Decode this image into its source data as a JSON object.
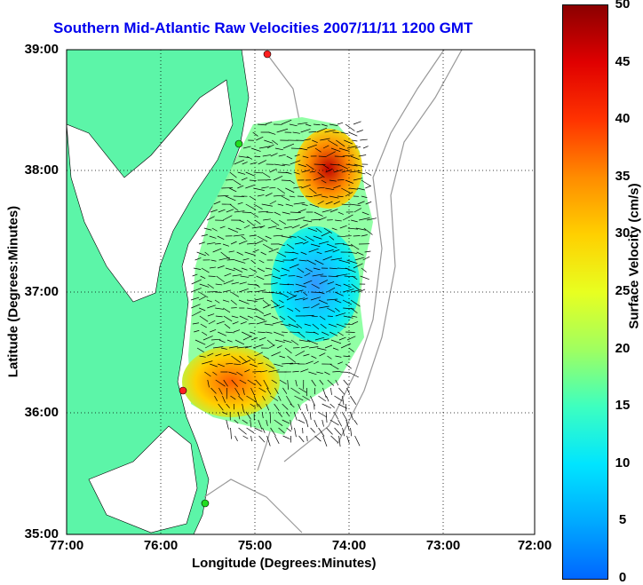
{
  "title": "Southern Mid-Atlantic Raw Velocities 2007/11/11 1200 GMT",
  "xlabel": "Longitude (Degrees:Minutes)",
  "ylabel": "Latitude (Degrees:Minutes)",
  "colorbar_label": "Surface Velocity (cm/s)",
  "x_ticks": [
    "77:00",
    "76:00",
    "75:00",
    "74:00",
    "73:00",
    "72:00"
  ],
  "y_ticks": [
    "39:00",
    "38:00",
    "37:00",
    "36:00",
    "35:00"
  ],
  "colorbar_ticks": [
    "50",
    "45",
    "40",
    "35",
    "30",
    "25",
    "20",
    "15",
    "10",
    "5",
    "0"
  ],
  "colors": {
    "land": "#5cf5a8",
    "water": "#ffffff",
    "title": "#0000ee",
    "bathymetry": "#999999",
    "station": "#ff2020",
    "station_alt": "#20dd20"
  },
  "chart_data": {
    "type": "heatmap",
    "xlim": [
      -77,
      -72
    ],
    "ylim": [
      35,
      39
    ],
    "colorbar_range": [
      0,
      50
    ],
    "grid": true
  }
}
